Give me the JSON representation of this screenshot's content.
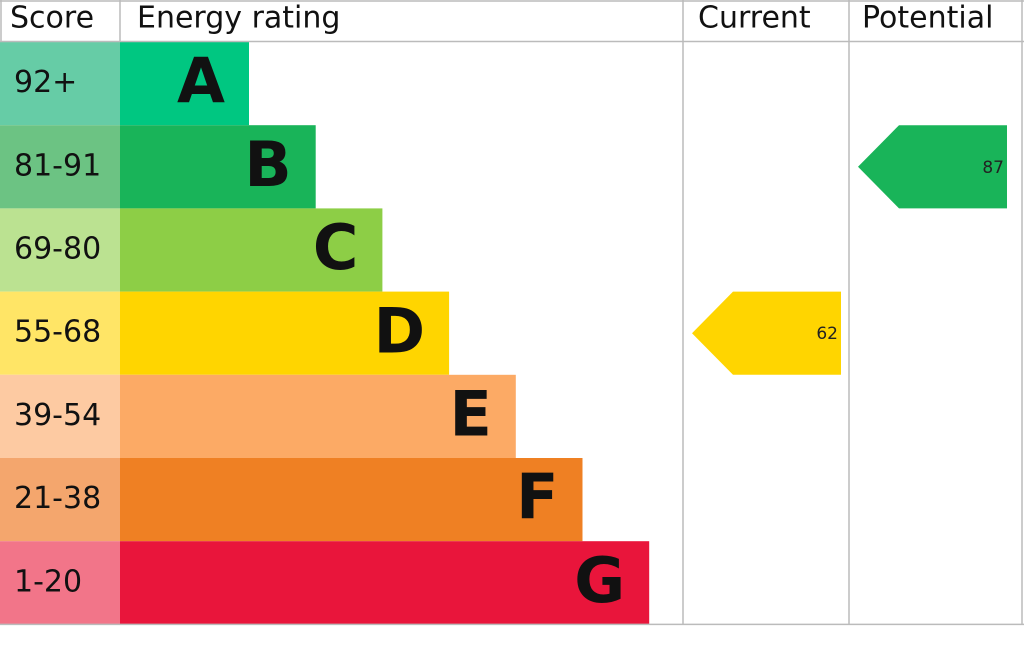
{
  "chart_data": {
    "type": "epc",
    "headers": [
      "Score",
      "Energy rating",
      "Current",
      "Potential"
    ],
    "bands": [
      {
        "score": "92+",
        "letter": "A",
        "color": "#00c781",
        "score_color": "#66cca6"
      },
      {
        "score": "81-91",
        "letter": "B",
        "color": "#19b459",
        "score_color": "#6cc383"
      },
      {
        "score": "69-80",
        "letter": "C",
        "color": "#8dce46",
        "score_color": "#bbe291"
      },
      {
        "score": "55-68",
        "letter": "D",
        "color": "#ffd500",
        "score_color": "#ffe566"
      },
      {
        "score": "39-54",
        "letter": "E",
        "color": "#fcaa65",
        "score_color": "#fdcaa2"
      },
      {
        "score": "21-38",
        "letter": "F",
        "color": "#ef8023",
        "score_color": "#f4a66d"
      },
      {
        "score": "1-20",
        "letter": "G",
        "color": "#e9153b",
        "score_color": "#f27589"
      }
    ],
    "current": 62,
    "potential": 87
  }
}
